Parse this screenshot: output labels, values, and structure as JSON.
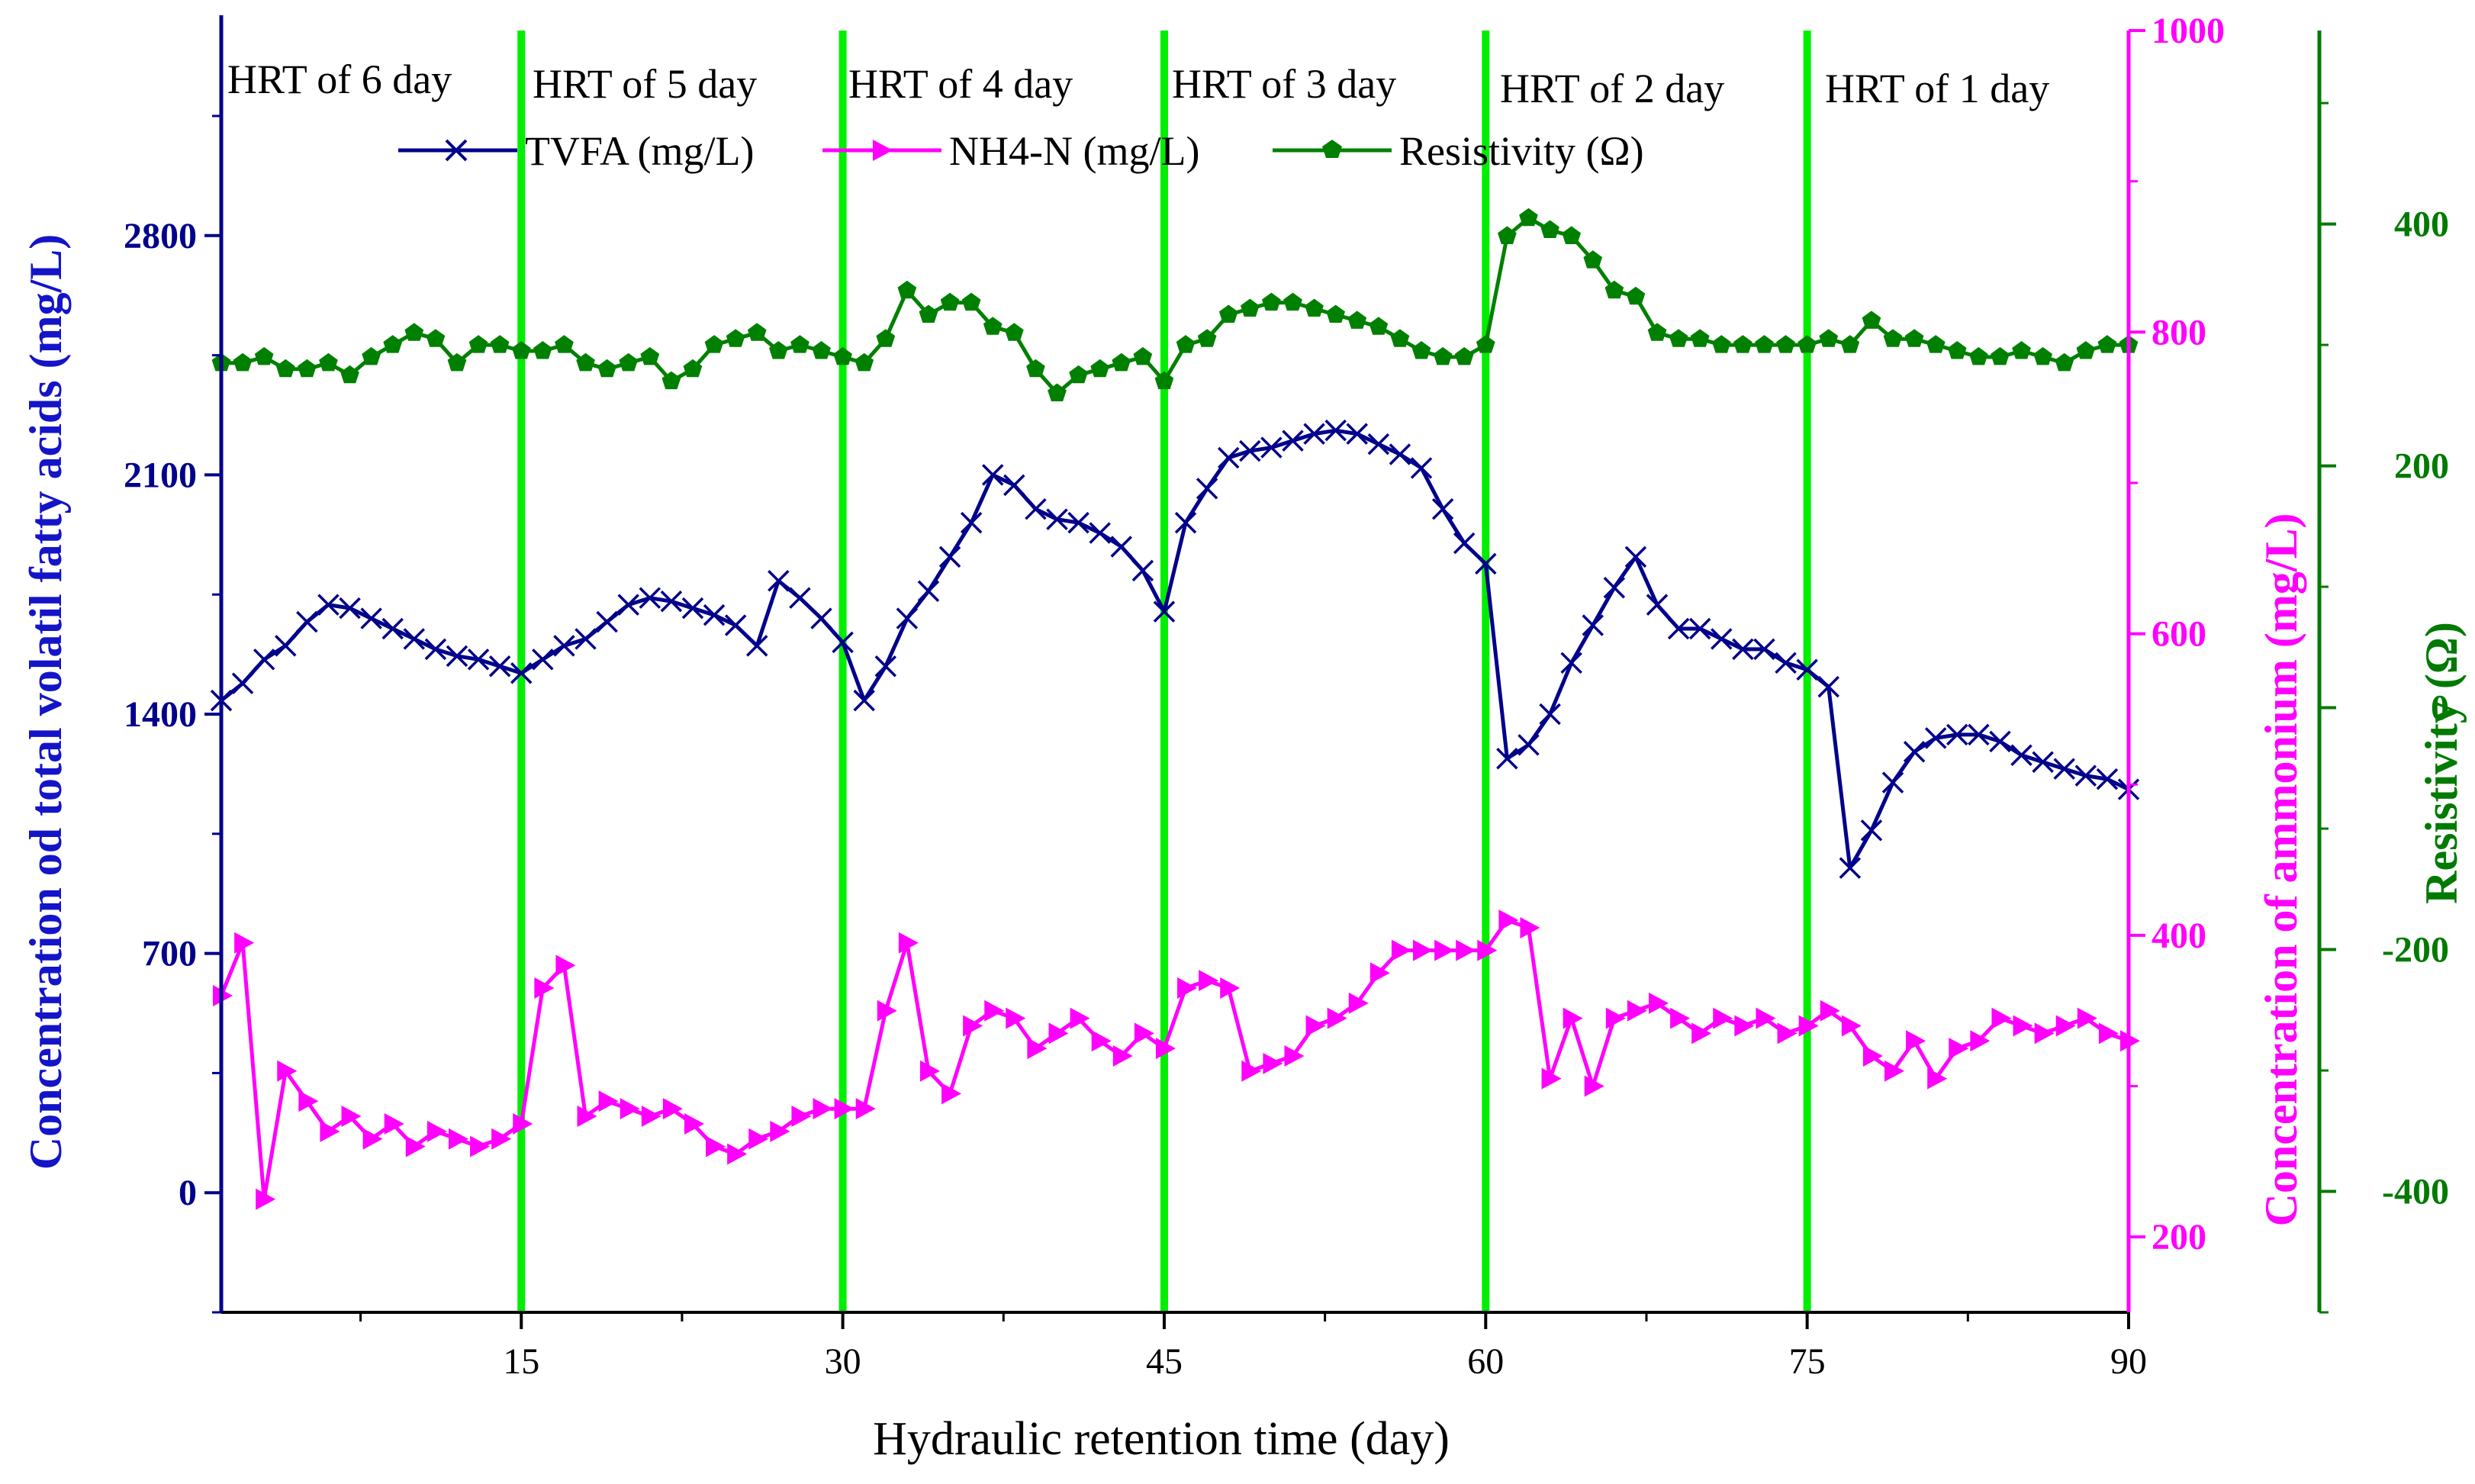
{
  "chart_data": {
    "type": "line",
    "xlabel": "Hydraulic retention time (day)",
    "x_ticks": [
      "15",
      "30",
      "45",
      "60",
      "75",
      "90"
    ],
    "xlim": [
      1,
      90
    ],
    "axes": {
      "left": {
        "label": "Concentration od total volatil fatty acids (mg/L)",
        "ylim": [
          -350,
          3400
        ],
        "ticks": [
          "0",
          "700",
          "1400",
          "2100",
          "2800"
        ],
        "color": "#00008B"
      },
      "right1": {
        "label": "Concentration of ammonium (mg/L)",
        "ylim": [
          150,
          1000
        ],
        "ticks": [
          "200",
          "400",
          "600",
          "800",
          "1000"
        ],
        "color": "#FF00FF"
      },
      "right2": {
        "label": "Resistivity (Ω)",
        "ylim": [
          -500,
          560
        ],
        "ticks": [
          "-400",
          "-200",
          "0",
          "200",
          "400"
        ],
        "color": "#007A00"
      }
    },
    "phases": [
      {
        "label": "HRT of 6 day"
      },
      {
        "label": "HRT of 5 day"
      },
      {
        "label": "HRT of 4 day"
      },
      {
        "label": "HRT of 3 day"
      },
      {
        "label": "HRT of 2 day"
      },
      {
        "label": "HRT of 1 day"
      }
    ],
    "phase_boundaries": [
      15,
      30,
      45,
      60,
      75
    ],
    "phase_line_color": "#00EE00",
    "series": [
      {
        "name": "TVFA (mg/L)",
        "axis": "left",
        "color": "#00008B",
        "marker": "x",
        "x": [
          1,
          2,
          3,
          4,
          5,
          6,
          7,
          8,
          9,
          10,
          11,
          12,
          13,
          14,
          15,
          16,
          17,
          18,
          19,
          20,
          21,
          22,
          23,
          24,
          25,
          26,
          27,
          28,
          29,
          30,
          31,
          32,
          33,
          34,
          35,
          36,
          37,
          38,
          39,
          40,
          41,
          42,
          43,
          44,
          45,
          46,
          47,
          48,
          49,
          50,
          51,
          52,
          53,
          54,
          55,
          56,
          57,
          58,
          59,
          60,
          61,
          62,
          63,
          64,
          65,
          66,
          67,
          68,
          69,
          70,
          71,
          72,
          73,
          74,
          75,
          76,
          77,
          78,
          79,
          80,
          81,
          82,
          83,
          84,
          85,
          86,
          87,
          88,
          89,
          90
        ],
        "values": [
          1440,
          1490,
          1560,
          1600,
          1670,
          1720,
          1710,
          1680,
          1650,
          1620,
          1590,
          1570,
          1560,
          1540,
          1520,
          1560,
          1600,
          1620,
          1670,
          1720,
          1740,
          1730,
          1710,
          1690,
          1660,
          1600,
          1790,
          1740,
          1680,
          1610,
          1440,
          1540,
          1680,
          1760,
          1860,
          1960,
          2100,
          2070,
          2000,
          1970,
          1960,
          1930,
          1890,
          1820,
          1700,
          1960,
          2060,
          2150,
          2170,
          2180,
          2200,
          2220,
          2230,
          2220,
          2190,
          2160,
          2120,
          2000,
          1900,
          1840,
          1270,
          1310,
          1400,
          1550,
          1660,
          1770,
          1860,
          1720,
          1650,
          1650,
          1620,
          1590,
          1590,
          1550,
          1530,
          1480,
          950,
          1060,
          1200,
          1290,
          1330,
          1340,
          1340,
          1320,
          1280,
          1260,
          1240,
          1220,
          1210,
          1180
        ]
      },
      {
        "name": "NH4-N (mg/L)",
        "axis": "right1",
        "color": "#FF00FF",
        "marker": "triangle-right",
        "x": [
          1,
          2,
          3,
          4,
          5,
          6,
          7,
          8,
          9,
          10,
          11,
          12,
          13,
          14,
          15,
          16,
          17,
          18,
          19,
          20,
          21,
          22,
          23,
          24,
          25,
          26,
          27,
          28,
          29,
          30,
          31,
          32,
          33,
          34,
          35,
          36,
          37,
          38,
          39,
          40,
          41,
          42,
          43,
          44,
          45,
          46,
          47,
          48,
          49,
          50,
          51,
          52,
          53,
          54,
          55,
          56,
          57,
          58,
          59,
          60,
          61,
          62,
          63,
          64,
          65,
          66,
          67,
          68,
          69,
          70,
          71,
          72,
          73,
          74,
          75,
          76,
          77,
          78,
          79,
          80,
          81,
          82,
          83,
          84,
          85,
          86,
          87,
          88,
          89,
          90
        ],
        "values": [
          360,
          395,
          225,
          310,
          290,
          270,
          280,
          265,
          275,
          260,
          270,
          265,
          260,
          265,
          275,
          365,
          380,
          280,
          290,
          285,
          280,
          285,
          275,
          260,
          255,
          265,
          270,
          280,
          285,
          285,
          285,
          350,
          395,
          310,
          295,
          340,
          350,
          345,
          325,
          335,
          345,
          330,
          320,
          335,
          325,
          365,
          370,
          365,
          310,
          315,
          320,
          340,
          345,
          355,
          375,
          390,
          390,
          390,
          390,
          390,
          410,
          405,
          305,
          345,
          300,
          345,
          350,
          355,
          345,
          335,
          345,
          340,
          345,
          335,
          340,
          350,
          340,
          320,
          310,
          330,
          305,
          325,
          330,
          345,
          340,
          335,
          340,
          345,
          335,
          330
        ]
      },
      {
        "name": "Resistivity (Ω)",
        "axis": "right2",
        "color": "#008000",
        "marker": "pentagon",
        "x": [
          1,
          2,
          3,
          4,
          5,
          6,
          7,
          8,
          9,
          10,
          11,
          12,
          13,
          14,
          15,
          16,
          17,
          18,
          19,
          20,
          21,
          22,
          23,
          24,
          25,
          26,
          27,
          28,
          29,
          30,
          31,
          32,
          33,
          34,
          35,
          36,
          37,
          38,
          39,
          40,
          41,
          42,
          43,
          44,
          45,
          46,
          47,
          48,
          49,
          50,
          51,
          52,
          53,
          54,
          55,
          56,
          57,
          58,
          59,
          60,
          61,
          62,
          63,
          64,
          65,
          66,
          67,
          68,
          69,
          70,
          71,
          72,
          73,
          74,
          75,
          76,
          77,
          78,
          79,
          80,
          81,
          82,
          83,
          84,
          85,
          86,
          87,
          88,
          89,
          90
        ],
        "values": [
          285,
          285,
          290,
          280,
          280,
          285,
          275,
          290,
          300,
          310,
          305,
          285,
          300,
          300,
          295,
          295,
          300,
          285,
          280,
          285,
          290,
          270,
          280,
          300,
          305,
          310,
          295,
          300,
          295,
          290,
          285,
          305,
          345,
          325,
          335,
          335,
          315,
          310,
          280,
          260,
          275,
          280,
          285,
          290,
          270,
          300,
          305,
          325,
          330,
          335,
          335,
          330,
          325,
          320,
          315,
          305,
          295,
          290,
          290,
          300,
          390,
          405,
          395,
          390,
          370,
          345,
          340,
          310,
          305,
          305,
          300,
          300,
          300,
          300,
          300,
          305,
          300,
          320,
          305,
          305,
          300,
          295,
          290,
          290,
          295,
          290,
          285,
          295,
          300,
          300
        ]
      }
    ]
  }
}
